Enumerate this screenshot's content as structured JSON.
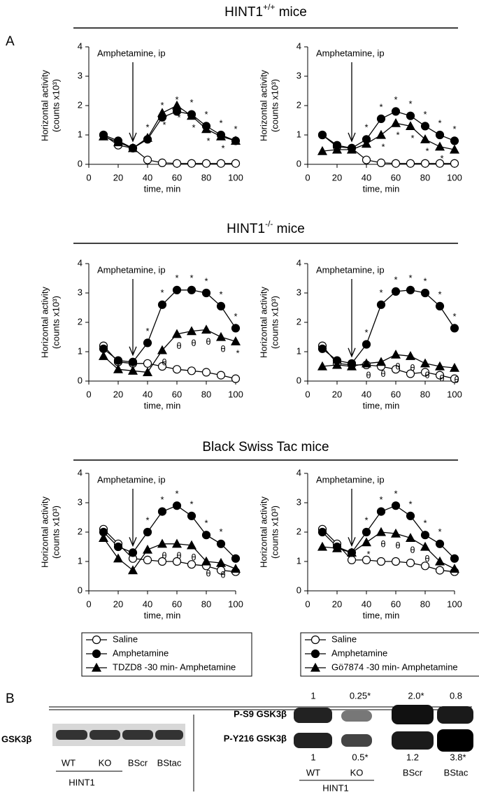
{
  "panel_labels": [
    "A",
    "B"
  ],
  "sections": [
    {
      "base": "HINT1",
      "sup": "+/+",
      "rest": " mice"
    },
    {
      "base": "HINT1",
      "sup": "-/-",
      "rest": "  mice"
    },
    {
      "base": "Black Swiss Tac mice"
    }
  ],
  "chart_data": [
    {
      "type": "line",
      "ylabel": [
        "Horizontal activity",
        "(counts x10³)"
      ],
      "xlabel": "time, min",
      "annotation": {
        "text": "Amphetamine, ip",
        "x": 30
      },
      "x": [
        10,
        20,
        30,
        40,
        50,
        60,
        70,
        80,
        90,
        100
      ],
      "xlim": [
        0,
        100
      ],
      "xticks": [
        0,
        20,
        40,
        60,
        80,
        100
      ],
      "ylim": [
        0,
        4
      ],
      "yticks": [
        0,
        1,
        2,
        3,
        4
      ],
      "series": [
        {
          "name": "Saline",
          "color": "#000",
          "marker": "circle-open",
          "values": [
            1.0,
            0.65,
            0.55,
            0.15,
            0.05,
            0.03,
            0.03,
            0.03,
            0.03,
            0.03
          ]
        },
        {
          "name": "Amphetamine",
          "color": "#000",
          "marker": "circle",
          "values": [
            1.0,
            0.8,
            0.55,
            0.85,
            1.6,
            1.8,
            1.7,
            1.3,
            1.0,
            0.8
          ],
          "significance": [
            null,
            null,
            null,
            "*",
            "*",
            "*",
            "*",
            "*",
            "*",
            "*"
          ]
        },
        {
          "name": "TDZD8 -30 min- Amphetamine",
          "color": "#000",
          "marker": "triangle",
          "values": [
            0.95,
            0.75,
            0.55,
            0.9,
            1.75,
            2.0,
            1.65,
            1.2,
            0.95,
            0.8
          ],
          "significance": [
            null,
            null,
            null,
            null,
            "*",
            "*",
            "*",
            "*",
            "*",
            null
          ]
        }
      ]
    },
    {
      "type": "line",
      "ylabel": [
        "Horizontal activity",
        "(counts x10³)"
      ],
      "xlabel": "time, min",
      "annotation": {
        "text": "Amphetamine, ip",
        "x": 30
      },
      "x": [
        10,
        20,
        30,
        40,
        50,
        60,
        70,
        80,
        90,
        100
      ],
      "xlim": [
        0,
        100
      ],
      "xticks": [
        0,
        20,
        40,
        60,
        80,
        100
      ],
      "ylim": [
        0,
        4
      ],
      "yticks": [
        0,
        1,
        2,
        3,
        4
      ],
      "series": [
        {
          "name": "Saline",
          "color": "#000",
          "marker": "circle-open",
          "values": [
            1.0,
            0.6,
            0.55,
            0.15,
            0.05,
            0.03,
            0.03,
            0.03,
            0.03,
            0.03
          ]
        },
        {
          "name": "Amphetamine",
          "color": "#000",
          "marker": "circle",
          "values": [
            1.0,
            0.65,
            0.55,
            0.85,
            1.55,
            1.8,
            1.65,
            1.3,
            1.0,
            0.8
          ],
          "significance": [
            null,
            null,
            null,
            "*",
            "*",
            "*",
            "*",
            "*",
            "*",
            "*"
          ]
        },
        {
          "name": "Gö7874 -30 min- Amphetamine",
          "color": "#000",
          "marker": "triangle",
          "values": [
            0.45,
            0.5,
            0.5,
            0.7,
            1.0,
            1.4,
            1.3,
            0.85,
            0.6,
            0.5
          ],
          "significance": [
            null,
            null,
            null,
            null,
            "*",
            "*",
            "*",
            "*",
            "*",
            null
          ]
        }
      ]
    },
    {
      "type": "line",
      "ylabel": [
        "Horizontal activity",
        "(counts x10³)"
      ],
      "xlabel": "time, min",
      "annotation": {
        "text": "Amphetamine, ip",
        "x": 30
      },
      "x": [
        10,
        20,
        30,
        40,
        50,
        60,
        70,
        80,
        90,
        100
      ],
      "xlim": [
        0,
        100
      ],
      "xticks": [
        0,
        20,
        40,
        60,
        80,
        100
      ],
      "ylim": [
        0,
        4
      ],
      "yticks": [
        0,
        1,
        2,
        3,
        4
      ],
      "series": [
        {
          "name": "Saline",
          "color": "#000",
          "marker": "circle-open",
          "values": [
            1.2,
            0.65,
            0.6,
            0.6,
            0.5,
            0.4,
            0.35,
            0.3,
            0.2,
            0.08
          ]
        },
        {
          "name": "Amphetamine",
          "color": "#000",
          "marker": "circle",
          "values": [
            1.1,
            0.7,
            0.65,
            1.3,
            2.6,
            3.1,
            3.1,
            3.0,
            2.55,
            1.8
          ],
          "significance": [
            null,
            null,
            null,
            "*",
            "*",
            "*",
            "*",
            "*",
            "*",
            "*"
          ]
        },
        {
          "name": "TDZD8 -30 min- Amphetamine",
          "color": "#000",
          "marker": "triangle",
          "values": [
            0.85,
            0.4,
            0.35,
            0.3,
            1.05,
            1.6,
            1.7,
            1.75,
            1.5,
            1.35
          ],
          "significance": [
            null,
            null,
            null,
            null,
            "θ",
            "θ",
            "θ",
            "θ",
            "θ",
            "*"
          ]
        }
      ]
    },
    {
      "type": "line",
      "ylabel": [
        "Horizontal activity",
        "(counts x10³)"
      ],
      "xlabel": "time, min",
      "annotation": {
        "text": "Amphetamine, ip",
        "x": 30
      },
      "x": [
        10,
        20,
        30,
        40,
        50,
        60,
        70,
        80,
        90,
        100
      ],
      "xlim": [
        0,
        100
      ],
      "xticks": [
        0,
        20,
        40,
        60,
        80,
        100
      ],
      "ylim": [
        0,
        4
      ],
      "yticks": [
        0,
        1,
        2,
        3,
        4
      ],
      "series": [
        {
          "name": "Saline",
          "color": "#000",
          "marker": "circle-open",
          "values": [
            1.2,
            0.6,
            0.55,
            0.55,
            0.5,
            0.4,
            0.25,
            0.3,
            0.2,
            0.08
          ]
        },
        {
          "name": "Amphetamine",
          "color": "#000",
          "marker": "circle",
          "values": [
            1.1,
            0.7,
            0.6,
            1.25,
            2.6,
            3.05,
            3.1,
            3.0,
            2.55,
            1.8
          ],
          "significance": [
            null,
            null,
            null,
            "*",
            "*",
            "*",
            "*",
            "*",
            "*",
            "*"
          ]
        },
        {
          "name": "Gö7874 -30 min- Amphetamine",
          "color": "#000",
          "marker": "triangle",
          "values": [
            0.5,
            0.55,
            0.5,
            0.6,
            0.65,
            0.9,
            0.85,
            0.6,
            0.5,
            0.45
          ],
          "significance": [
            null,
            null,
            null,
            "θ",
            "θ",
            "θ",
            "θ",
            "θ",
            "θ",
            "θ"
          ]
        }
      ]
    },
    {
      "type": "line",
      "ylabel": [
        "Horizontal activity",
        "(counts x10³)"
      ],
      "xlabel": "time, min",
      "annotation": {
        "text": "Amphetamine, ip",
        "x": 30
      },
      "legend": "below",
      "x": [
        10,
        20,
        30,
        40,
        50,
        60,
        70,
        80,
        90,
        100
      ],
      "xlim": [
        0,
        100
      ],
      "xticks": [
        0,
        20,
        40,
        60,
        80,
        100
      ],
      "ylim": [
        0,
        4
      ],
      "yticks": [
        0,
        1,
        2,
        3,
        4
      ],
      "series": [
        {
          "name": "Saline",
          "color": "#000",
          "marker": "circle-open",
          "values": [
            2.1,
            1.6,
            1.1,
            1.05,
            1.0,
            1.0,
            0.9,
            0.85,
            0.7,
            0.65
          ]
        },
        {
          "name": "Amphetamine",
          "color": "#000",
          "marker": "circle",
          "values": [
            2.0,
            1.5,
            1.3,
            2.0,
            2.7,
            2.9,
            2.55,
            1.9,
            1.6,
            1.1
          ],
          "significance": [
            null,
            null,
            null,
            "*",
            "*",
            "*",
            "*",
            "*",
            "*",
            null
          ]
        },
        {
          "name": "TDZD8 -30 min- Amphetamine",
          "color": "#000",
          "marker": "triangle",
          "values": [
            1.8,
            1.1,
            0.7,
            1.4,
            1.6,
            1.6,
            1.55,
            1.0,
            0.95,
            0.75
          ],
          "significance": [
            null,
            null,
            null,
            null,
            "θ",
            "θ",
            "θ",
            "θ",
            "θ",
            null
          ]
        }
      ]
    },
    {
      "type": "line",
      "ylabel": [
        "Horizontal activity",
        "(counts x10³)"
      ],
      "xlabel": "time, min",
      "annotation": {
        "text": "Amphetamine, ip",
        "x": 30
      },
      "legend": "below",
      "x": [
        10,
        20,
        30,
        40,
        50,
        60,
        70,
        80,
        90,
        100
      ],
      "xlim": [
        0,
        100
      ],
      "xticks": [
        0,
        20,
        40,
        60,
        80,
        100
      ],
      "ylim": [
        0,
        4
      ],
      "yticks": [
        0,
        1,
        2,
        3,
        4
      ],
      "series": [
        {
          "name": "Saline",
          "color": "#000",
          "marker": "circle-open",
          "values": [
            2.1,
            1.6,
            1.05,
            1.05,
            1.0,
            1.0,
            0.95,
            0.85,
            0.7,
            0.65
          ]
        },
        {
          "name": "Amphetamine",
          "color": "#000",
          "marker": "circle",
          "values": [
            2.0,
            1.5,
            1.3,
            2.0,
            2.7,
            2.9,
            2.55,
            1.9,
            1.6,
            1.1
          ],
          "significance": [
            null,
            null,
            null,
            "*",
            "*",
            "*",
            "*",
            "*",
            "*",
            null
          ]
        },
        {
          "name": "Gö7874 -30 min- Amphetamine",
          "color": "#000",
          "marker": "triangle",
          "values": [
            1.5,
            1.45,
            1.3,
            1.65,
            2.0,
            1.95,
            1.8,
            1.5,
            1.0,
            0.75
          ],
          "significance": [
            null,
            null,
            null,
            "*",
            "θ",
            "θ",
            "θ",
            "θ",
            null,
            null
          ]
        }
      ]
    }
  ],
  "panel_b": {
    "left": {
      "row_label": "GSK3β",
      "lanes": [
        "WT",
        "KO",
        "BScr",
        "BStac"
      ],
      "group": "HINT1"
    },
    "right": {
      "row_labels": [
        "P-S9 GSK3β",
        "P-Y216 GSK3β"
      ],
      "top_values": [
        "1",
        "0.25*",
        "2.0*",
        "0.8"
      ],
      "bottom_values": [
        "1",
        "0.5*",
        "1.2",
        "3.8*"
      ],
      "lanes": [
        "WT",
        "KO",
        "BScr",
        "BStac"
      ],
      "group": "HINT1"
    }
  }
}
